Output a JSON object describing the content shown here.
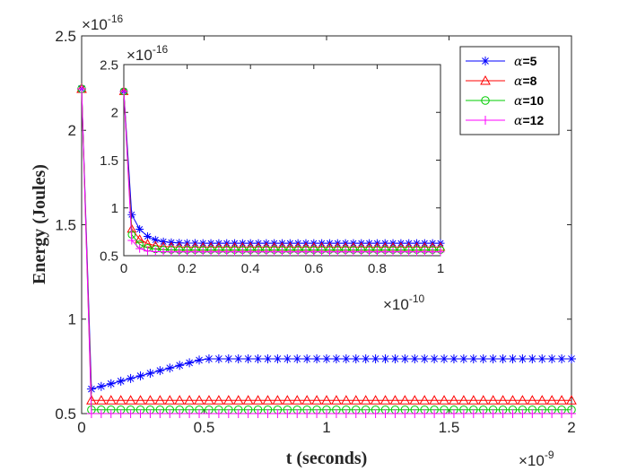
{
  "chart_data": {
    "type": "line",
    "main": {
      "xlabel": "t (seconds)",
      "ylabel": "Energy (Joules)",
      "xlim": [
        0,
        2
      ],
      "ylim": [
        0.5,
        2.5
      ],
      "xticks": [
        0,
        0.5,
        1,
        1.5,
        2
      ],
      "yticks": [
        0.5,
        1,
        1.5,
        2,
        2.5
      ],
      "xtick_labels": [
        "0",
        "0.5",
        "1",
        "1.5",
        "2"
      ],
      "ytick_labels": [
        "0.5",
        "1",
        "1.5",
        "2",
        "2.5"
      ],
      "x_multiplier": "×10",
      "x_exponent": "-9",
      "y_multiplier": "×10",
      "y_exponent": "-16",
      "x_start": 0,
      "x_step": 0.04,
      "n_points": 51
    },
    "inset": {
      "xlim": [
        0,
        1
      ],
      "ylim": [
        0.5,
        2.5
      ],
      "xticks": [
        0,
        0.2,
        0.4,
        0.6,
        0.8,
        1
      ],
      "yticks": [
        0.5,
        1,
        1.5,
        2,
        2.5
      ],
      "xtick_labels": [
        "0",
        "0.2",
        "0.4",
        "0.6",
        "0.8",
        "1"
      ],
      "ytick_labels": [
        "0.5",
        "1",
        "1.5",
        "2",
        "2.5"
      ],
      "x_multiplier": "×10",
      "x_exponent": "-10",
      "y_multiplier": "×10",
      "y_exponent": "-16",
      "x_start": 0,
      "x_step": 0.025,
      "n_points": 41
    },
    "legend_position": "top-right",
    "series": [
      {
        "name": "α=5",
        "greek": "α",
        "value_label": "=5",
        "color": "#0000ff",
        "marker": "asterisk",
        "main_y": {
          "start": 2.22,
          "first": 0.63,
          "plateau": 0.79,
          "rise_end_x": 0.5
        },
        "inset_y": {
          "start": 2.22,
          "first": 0.93,
          "plateau": 0.63,
          "decay": 0.035
        }
      },
      {
        "name": "α=8",
        "greek": "α",
        "value_label": "=8",
        "color": "#ff0000",
        "marker": "triangle",
        "main_y": {
          "start": 2.22,
          "first": 0.57,
          "plateau": 0.57,
          "rise_end_x": 0.5
        },
        "inset_y": {
          "start": 2.22,
          "first": 0.78,
          "plateau": 0.59,
          "decay": 0.03
        }
      },
      {
        "name": "α=10",
        "greek": "α",
        "value_label": "=10",
        "color": "#00cc00",
        "marker": "circle",
        "main_y": {
          "start": 2.22,
          "first": 0.52,
          "plateau": 0.52,
          "rise_end_x": 0.5
        },
        "inset_y": {
          "start": 2.22,
          "first": 0.72,
          "plateau": 0.56,
          "decay": 0.025
        }
      },
      {
        "name": "α=12",
        "greek": "α",
        "value_label": "=12",
        "color": "#ff00ff",
        "marker": "plus",
        "main_y": {
          "start": 2.22,
          "first": 0.5,
          "plateau": 0.5,
          "rise_end_x": 0.5
        },
        "inset_y": {
          "start": 2.22,
          "first": 0.66,
          "plateau": 0.54,
          "decay": 0.02
        }
      }
    ]
  }
}
